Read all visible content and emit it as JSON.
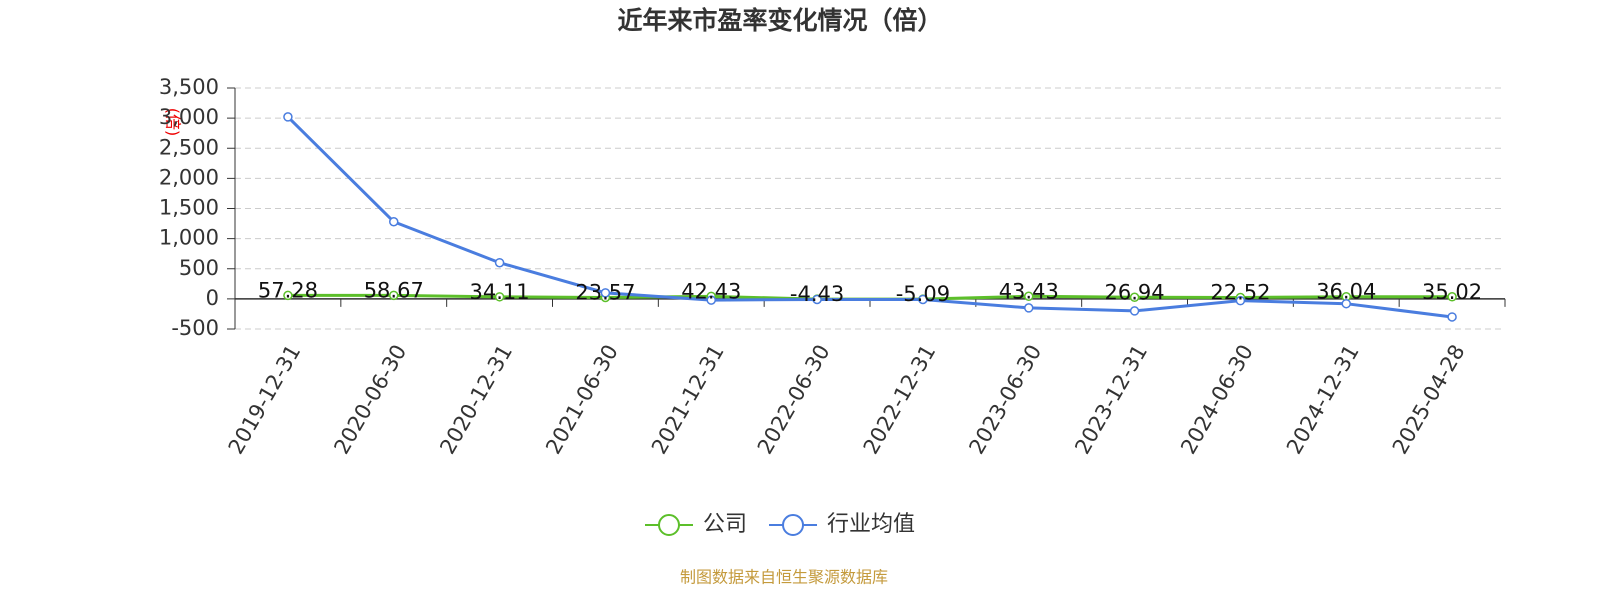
{
  "chart_data": {
    "type": "line",
    "title": "近年来市盈率变化情况（倍）",
    "y_label": "(倍)",
    "categories": [
      "2019-12-31",
      "2020-06-30",
      "2020-12-31",
      "2021-06-30",
      "2021-12-31",
      "2022-06-30",
      "2022-12-31",
      "2023-06-30",
      "2023-12-31",
      "2024-06-30",
      "2024-12-31",
      "2025-04-28"
    ],
    "series": [
      {
        "name": "公司",
        "color": "#5cbf2a",
        "values": [
          57.28,
          58.67,
          34.11,
          23.57,
          42.43,
          -4.43,
          -5.09,
          43.43,
          26.94,
          22.52,
          36.04,
          35.02
        ]
      },
      {
        "name": "行业均值",
        "color": "#4a7ddf",
        "values": [
          3020,
          1280,
          600,
          100,
          -20,
          -10,
          -10,
          -150,
          -200,
          -30,
          -80,
          -300
        ]
      }
    ],
    "ylim": [
      -500,
      3500
    ],
    "yticks": [
      -500,
      0,
      500,
      {
        "value": 1000,
        "label": "1,000"
      },
      {
        "value": 1500,
        "label": "1,500"
      },
      {
        "value": 2000,
        "label": "2,000"
      },
      {
        "value": 2500,
        "label": "2,500"
      },
      {
        "value": 3000,
        "label": "3,000"
      },
      {
        "value": 3500,
        "label": "3,500"
      }
    ],
    "grid": true,
    "source": "制图数据来自恒生聚源数据库"
  }
}
